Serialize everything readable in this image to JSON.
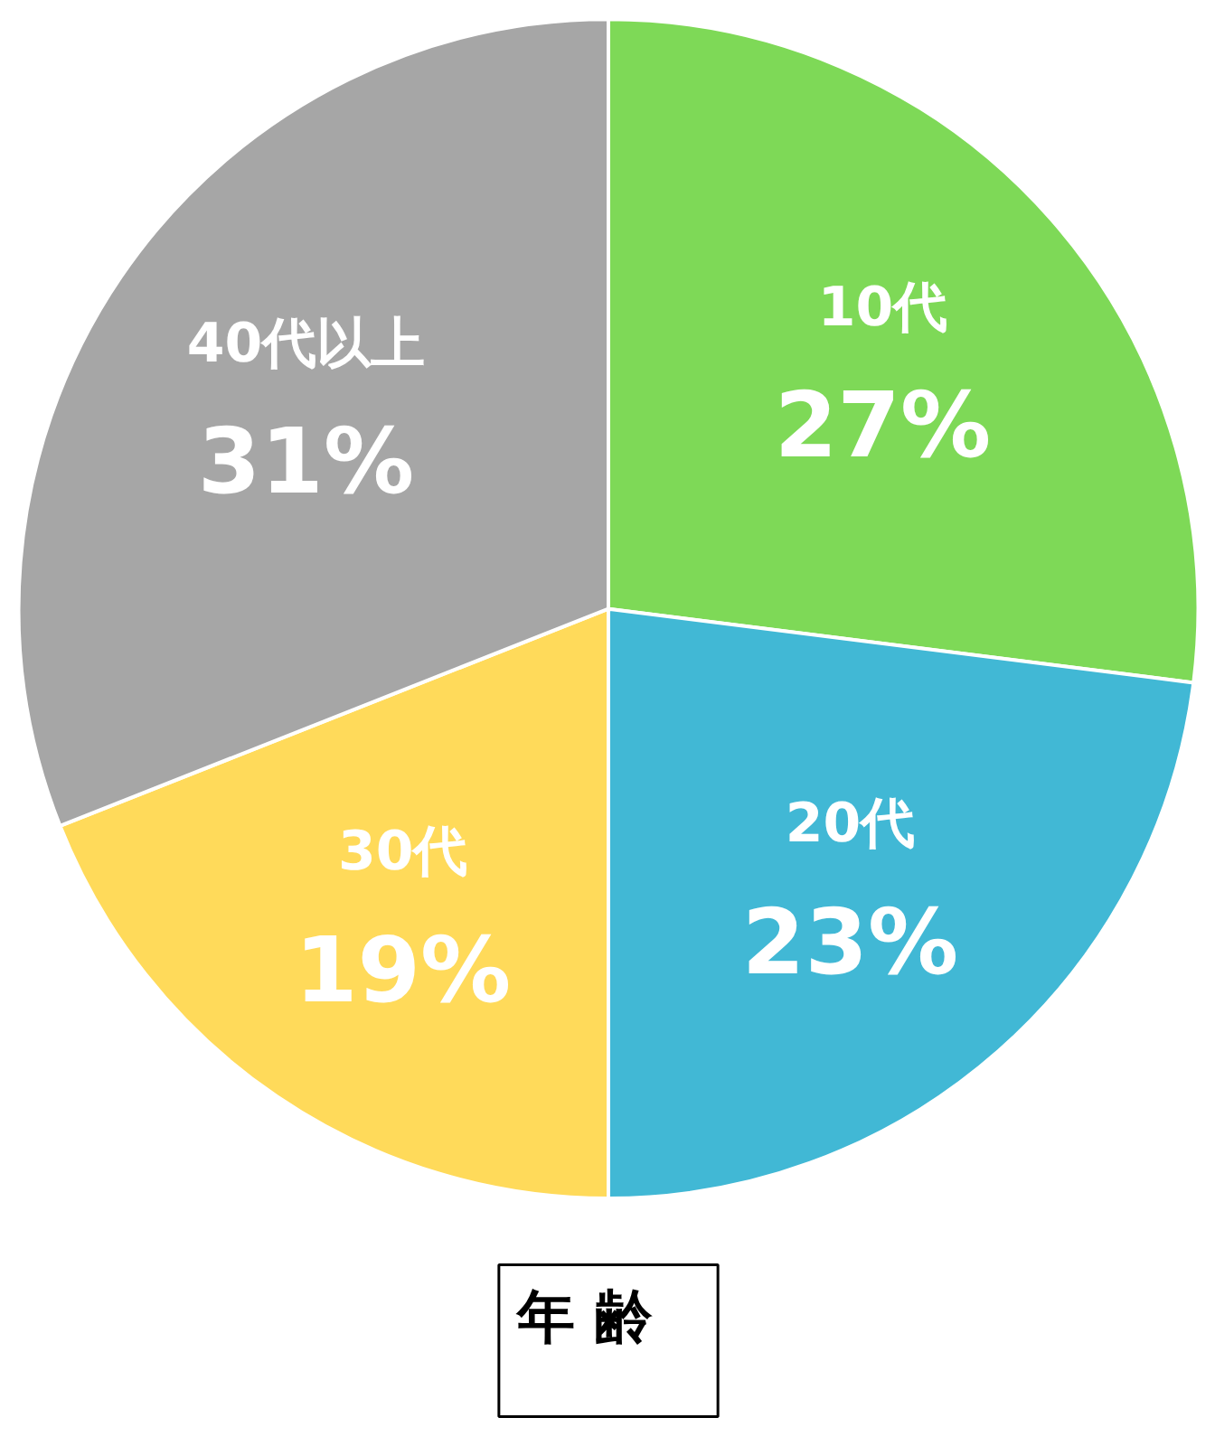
{
  "chart_data": {
    "type": "pie",
    "title": "年 齢",
    "categories": [
      "10代",
      "20代",
      "30代",
      "40代以上"
    ],
    "values": [
      27,
      23,
      19,
      31
    ],
    "value_labels": [
      "27%",
      "23%",
      "19%",
      "31%"
    ],
    "colors": [
      "#7ed957",
      "#41b8d5",
      "#ffda5a",
      "#a6a6a6"
    ],
    "legend": false
  }
}
